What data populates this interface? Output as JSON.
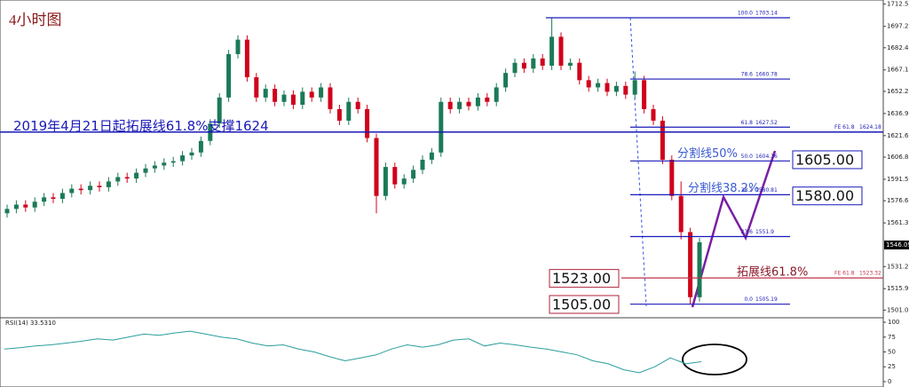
{
  "chart_data": [
    {
      "type": "candlestick",
      "title": "4小时图",
      "open": [
        1568,
        1571,
        1574,
        1572,
        1576,
        1579,
        1578,
        1582,
        1585,
        1584,
        1587,
        1586,
        1590,
        1593,
        1592,
        1596,
        1599,
        1601,
        1603,
        1604,
        1608,
        1610,
        1618,
        1630,
        1648,
        1678,
        1688,
        1662,
        1648,
        1654,
        1645,
        1650,
        1643,
        1652,
        1648,
        1655,
        1640,
        1632,
        1645,
        1640,
        1620,
        1580,
        1600,
        1588,
        1592,
        1598,
        1605,
        1610,
        1645,
        1640,
        1645,
        1642,
        1648,
        1645,
        1655,
        1665,
        1672,
        1668,
        1675,
        1670,
        1690,
        1670,
        1672,
        1660,
        1655,
        1658,
        1652,
        1656,
        1650,
        1660,
        1640,
        1632,
        1605,
        1580,
        1555,
        1510
      ],
      "high": [
        1574,
        1577,
        1577,
        1579,
        1582,
        1582,
        1585,
        1588,
        1588,
        1590,
        1590,
        1593,
        1596,
        1596,
        1599,
        1602,
        1604,
        1606,
        1607,
        1611,
        1613,
        1621,
        1633,
        1651,
        1681,
        1691,
        1691,
        1665,
        1657,
        1657,
        1653,
        1653,
        1655,
        1655,
        1658,
        1658,
        1643,
        1648,
        1648,
        1643,
        1623,
        1603,
        1603,
        1595,
        1601,
        1608,
        1613,
        1648,
        1648,
        1648,
        1648,
        1651,
        1651,
        1658,
        1668,
        1675,
        1675,
        1678,
        1678,
        1703,
        1693,
        1675,
        1675,
        1663,
        1661,
        1661,
        1659,
        1659,
        1666,
        1663,
        1643,
        1635,
        1608,
        1590,
        1558,
        1551
      ],
      "low": [
        1565,
        1568,
        1569,
        1569,
        1573,
        1575,
        1575,
        1579,
        1581,
        1581,
        1583,
        1583,
        1587,
        1589,
        1589,
        1593,
        1596,
        1598,
        1600,
        1601,
        1605,
        1607,
        1615,
        1627,
        1645,
        1675,
        1659,
        1645,
        1645,
        1642,
        1642,
        1640,
        1640,
        1645,
        1645,
        1637,
        1629,
        1629,
        1637,
        1617,
        1568,
        1577,
        1585,
        1585,
        1589,
        1595,
        1602,
        1607,
        1637,
        1637,
        1639,
        1639,
        1642,
        1642,
        1652,
        1662,
        1665,
        1665,
        1667,
        1667,
        1667,
        1667,
        1657,
        1652,
        1652,
        1649,
        1649,
        1647,
        1647,
        1637,
        1629,
        1602,
        1577,
        1550,
        1505,
        1507
      ],
      "close": [
        1571,
        1574,
        1572,
        1576,
        1579,
        1578,
        1582,
        1585,
        1584,
        1587,
        1586,
        1590,
        1593,
        1592,
        1596,
        1599,
        1601,
        1603,
        1604,
        1608,
        1610,
        1618,
        1630,
        1648,
        1678,
        1688,
        1662,
        1648,
        1654,
        1645,
        1650,
        1643,
        1652,
        1648,
        1655,
        1640,
        1632,
        1645,
        1640,
        1620,
        1580,
        1600,
        1588,
        1592,
        1598,
        1605,
        1610,
        1645,
        1640,
        1645,
        1642,
        1648,
        1645,
        1655,
        1665,
        1672,
        1668,
        1675,
        1670,
        1690,
        1670,
        1672,
        1660,
        1655,
        1658,
        1652,
        1656,
        1650,
        1660,
        1640,
        1632,
        1605,
        1580,
        1555,
        1510,
        1548
      ],
      "up_color": "#1b7a57",
      "down_color": "#d0021b",
      "ylim": [
        1496.4,
        1715.4
      ],
      "yticks": [
        1712.55,
        {
          "value": 1697.2,
          "label": "1697.20"
        },
        {
          "value": 1682.4,
          "label": "1682.40"
        },
        {
          "value": 1667.1,
          "label": "1667.10"
        },
        1652.25,
        1636.95,
        1621.65,
        {
          "value": 1606.8,
          "label": "1606.80"
        },
        {
          "value": 1591.5,
          "label": "1591.50"
        },
        1576.65,
        1561.35,
        {
          "value": 1531.2,
          "label": "1531.20"
        },
        {
          "value": 1515.9,
          "label": "1515.90"
        },
        1501.05
      ],
      "current_price": 1546.09,
      "fib_levels": [
        {
          "ratio": "100.0",
          "value": 1703.14
        },
        {
          "ratio": "78.6",
          "value": 1660.78
        },
        {
          "ratio": "61.8",
          "value": 1627.52
        },
        {
          "ratio": "50.0",
          "value": 1604.16
        },
        {
          "ratio": "38.2",
          "value": 1580.81
        },
        {
          "ratio": "23.6",
          "value": 1551.9
        },
        {
          "ratio": "0.0",
          "value": 1505.19
        }
      ],
      "fe_levels": [
        {
          "label": "FE 61.8",
          "value": 1624.18,
          "color": "#1a1ab8"
        },
        {
          "label": "FE 61.8",
          "value": 1523.32,
          "color": "#c0304a"
        }
      ],
      "annotations": {
        "support": "2019年4月21日起拓展线61.8%支撑1624",
        "split50": "分割线50%",
        "split382": "分割线38.2%",
        "ext618": "拓展线61.8%"
      },
      "price_boxes": [
        {
          "value": 1605,
          "label": "1605.00",
          "color": "#1a1ab8"
        },
        {
          "value": 1580,
          "label": "1580.00",
          "color": "#1a1ab8"
        },
        {
          "value": 1523,
          "label": "1523.00",
          "color": "#b0213a"
        },
        {
          "value": 1505,
          "label": "1505.00",
          "color": "#b0213a"
        }
      ]
    },
    {
      "type": "line",
      "title": "RSI(14) 33.5310",
      "color": "#2a9d9d",
      "values": [
        55,
        57,
        60,
        62,
        65,
        68,
        72,
        70,
        75,
        80,
        78,
        82,
        85,
        80,
        75,
        72,
        65,
        60,
        62,
        55,
        50,
        42,
        35,
        40,
        45,
        55,
        62,
        58,
        62,
        70,
        72,
        60,
        65,
        62,
        58,
        55,
        50,
        45,
        35,
        30,
        20,
        15,
        25,
        40,
        30,
        33.5
      ],
      "ylim": [
        -9,
        107.5
      ],
      "yticks": [
        100,
        75,
        50,
        25,
        0
      ]
    }
  ]
}
